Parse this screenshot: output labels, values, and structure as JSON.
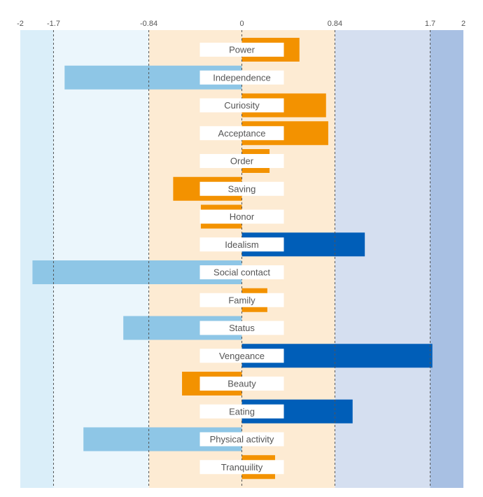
{
  "chart_data": {
    "type": "bar",
    "orientation": "horizontal",
    "title": "",
    "xlabel": "",
    "ylabel": "",
    "xlim": [
      -2,
      2
    ],
    "grid": false,
    "tick_labels": [
      "-2",
      "-1.7",
      "-0.84",
      "0",
      "0.84",
      "1.7",
      "2"
    ],
    "tick_values": [
      -2,
      -1.7,
      -0.84,
      0,
      0.84,
      1.7,
      2
    ],
    "dashed_lines": [
      -1.7,
      -0.84,
      0.84,
      1.7
    ],
    "bands": [
      {
        "from": -2,
        "to": -1.7,
        "color": "#daeef9"
      },
      {
        "from": -1.7,
        "to": -0.84,
        "color": "#ebf6fc"
      },
      {
        "from": -0.84,
        "to": 0.84,
        "color": "#fdebd3"
      },
      {
        "from": 0.84,
        "to": 1.7,
        "color": "#d5dff0"
      },
      {
        "from": 1.7,
        "to": 2,
        "color": "#a8c0e3"
      }
    ],
    "categories": [
      "Power",
      "Independence",
      "Curiosity",
      "Acceptance",
      "Order",
      "Saving",
      "Honor",
      "Idealism",
      "Social contact",
      "Family",
      "Status",
      "Vengeance",
      "Beauty",
      "Eating",
      "Physical activity",
      "Tranquility"
    ],
    "values": [
      0.52,
      -1.6,
      0.76,
      0.78,
      0.25,
      -0.62,
      -0.37,
      1.11,
      -1.89,
      0.23,
      -1.07,
      1.72,
      -0.54,
      1.0,
      -1.43,
      0.3
    ],
    "colors": {
      "neutral": "#f39200",
      "strong_positive": "#005eb8",
      "strong_negative": "#8ec6e6"
    }
  }
}
